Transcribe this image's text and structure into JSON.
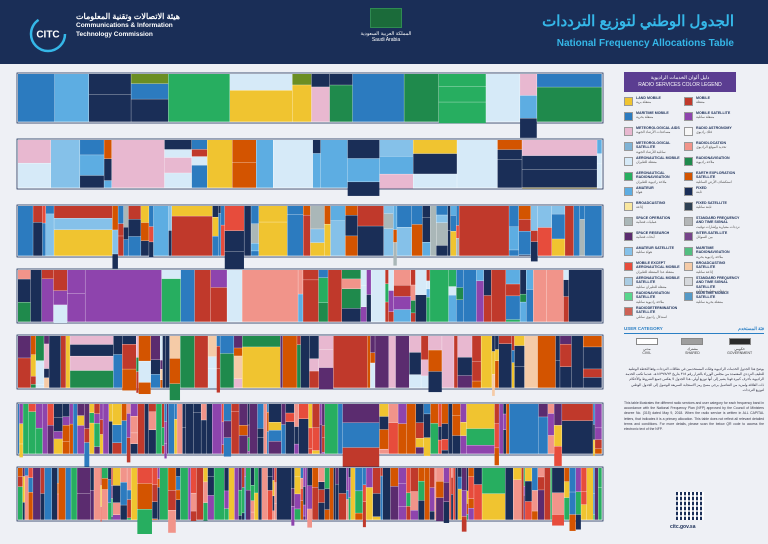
{
  "header": {
    "org_ar": "هيئة الاتصالات وتقنية المعلومات",
    "org_en_1": "Communications & Information",
    "org_en_2": "Technology Commission",
    "logo_word": "CITC",
    "kingdom_ar": "المملكة العربية السعودية",
    "kingdom_en": "Saudi Arabia",
    "title_ar": "الجدول الوطني لتوزيع الترددات",
    "title_en": "National Frequency Allocations Table"
  },
  "legend": {
    "title_ar": "دليل ألوان الخدمات الراديوية",
    "title_en": "RADIO SERVICES COLOR LEGEND",
    "items": [
      {
        "en": "LAND MOBILE",
        "ar": "متنقلة برية",
        "color": "#f0c430"
      },
      {
        "en": "MOBILE",
        "ar": "متنقلة",
        "color": "#c0392b"
      },
      {
        "en": "MARITIME MOBILE",
        "ar": "متنقلة بحرية",
        "color": "#2c7bbf"
      },
      {
        "en": "MOBILE SATELLITE",
        "ar": "متنقلة ساتلية",
        "color": "#8e44ad"
      },
      {
        "en": "METEOROLOGICAL AIDS",
        "ar": "مساعدات الأرصاد الجوية",
        "color": "#e8b8d0"
      },
      {
        "en": "RADIO ASTRONOMY",
        "ar": "فلك راديوي",
        "color": "#f7f7f7"
      },
      {
        "en": "METEOROLOGICAL SATELLITE",
        "ar": "ساتلية للأرصاد الجوية",
        "color": "#7fb3d5"
      },
      {
        "en": "RADIOLOCATION",
        "ar": "تحديد الموقع الراديوي",
        "color": "#f1948a"
      },
      {
        "en": "AERONAUTICAL MOBILE",
        "ar": "متنقلة للطيران",
        "color": "#d6eaf8"
      },
      {
        "en": "RADIONAVIGATION",
        "ar": "ملاحة راديوية",
        "color": "#1f8a4c"
      },
      {
        "en": "AERONAUTICAL RADIONAVIGATION",
        "ar": "ملاحة راديوية للطيران",
        "color": "#27ae60"
      },
      {
        "en": "EARTH EXPLORATION SATELLITE",
        "ar": "استكشاف الأرض الساتلية",
        "color": "#d35400"
      },
      {
        "en": "AMATEUR",
        "ar": "هواة",
        "color": "#5dade2"
      },
      {
        "en": "FIXED",
        "ar": "ثابتة",
        "color": "#1a2e57"
      },
      {
        "en": "BROADCASTING",
        "ar": "إذاعة",
        "color": "#f9e79f"
      },
      {
        "en": "FIXED SATELLITE",
        "ar": "ثابتة ساتلية",
        "color": "#2e4053"
      },
      {
        "en": "SPACE OPERATION",
        "ar": "عمليات فضائية",
        "color": "#aab7b8"
      },
      {
        "en": "STANDARD FREQUENCY AND TIME SIGNAL",
        "ar": "ترددات معيارية وإشارات توقيت",
        "color": "#b3b6b7"
      },
      {
        "en": "SPACE RESEARCH",
        "ar": "أبحاث فضائية",
        "color": "#5b2c6f"
      },
      {
        "en": "INTER-SATELLITE",
        "ar": "بين السواتل",
        "color": "#76448a"
      },
      {
        "en": "AMATEUR SATELLITE",
        "ar": "هواة ساتلية",
        "color": "#85c1e9"
      },
      {
        "en": "MARITIME RADIONAVIGATION",
        "ar": "ملاحة راديوية بحرية",
        "color": "#52be80"
      },
      {
        "en": "MOBILE EXCEPT AERONAUTICAL MOBILE",
        "ar": "متنقلة عدا المتنقلة للطيران",
        "color": "#e74c3c"
      },
      {
        "en": "BROADCASTING SATELLITE",
        "ar": "إذاعة ساتلية",
        "color": "#f5cba7"
      },
      {
        "en": "AERONAUTICAL MOBILE SATELLITE",
        "ar": "متنقلة للطيران ساتلية",
        "color": "#a9cce3"
      },
      {
        "en": "STANDARD FREQUENCY AND TIME SIGNAL SATELLITE",
        "ar": "ترددات معيارية ساتلية",
        "color": "#d5d8dc"
      },
      {
        "en": "RADIONAVIGATION SATELLITE",
        "ar": "ملاحة راديوية ساتلية",
        "color": "#58d68d"
      },
      {
        "en": "MARITIME MOBILE SATELLITE",
        "ar": "متنقلة بحرية ساتلية",
        "color": "#5499c7"
      },
      {
        "en": "RADIODETERMINATION SATELLITE",
        "ar": "استدلال راديوي ساتلي",
        "color": "#cd6155"
      }
    ]
  },
  "user_category": {
    "title_en": "USER CATEGORY",
    "title_ar": "فئة المستخدم",
    "items": [
      {
        "en": "CIVIL",
        "ar": "مدني",
        "color": "#ffffff"
      },
      {
        "en": "SHARED",
        "ar": "مشترك",
        "color": "#9e9e9e"
      },
      {
        "en": "GOVERNMENT",
        "ar": "حكومي",
        "color": "#2b2b2b"
      }
    ]
  },
  "notes": {
    "ar": "يوضح هذا الجدول الخدمات الراديوية وفئات المستخدمين في نطاقات الترددات وفقا للخطة الوطنية للطيف الترددي المعتمدة من مجلس الوزراء بالقرار رقم ٣١٥ بتاريخ ١٤٣٩/٨/٢٣هـ. عندما تكتب الخدمة الراديوية بأحرف كبيرة فهذا يشير إلى أنها توزيع أولي. هذا الجدول لا يعكس جميع الشروط والأحكام ذات العلاقة ولمزيد من التفاصيل يرجى مسح رمز الاستجابة السريعة للوصول إلى الجدول الوطني لتوزيع الترددات.",
    "en": "This table illustrates the different radio services and user category for each frequency band in accordance with the National Frequency Plan (NFP) approved by the Council of Ministers decree No. (315) dated May 9, 2018. When the radio service is written in ALL CAPITAL letters, that indicates it is a primary allocation. This table does not reflect all relevant detailed terms and conditions. For more details, please scan the below QR code to access the electronic text of the NFP."
  },
  "footer": {
    "website": "citc.gov.sa"
  },
  "rows": [
    {
      "palette": [
        "#1a2e57",
        "#2c7bbf",
        "#2c7bbf",
        "#f0c430",
        "#1f8a4c",
        "#27ae60",
        "#6b8e23",
        "#1a2e57",
        "#d6eaf8",
        "#d6eaf8",
        "#5dade2",
        "#e8b8d0"
      ],
      "density": 18
    },
    {
      "palette": [
        "#e8b8d0",
        "#2c7bbf",
        "#1a2e57",
        "#d6eaf8",
        "#d6eaf8",
        "#1a2e57",
        "#c0392b",
        "#d35400",
        "#f0c430",
        "#5dade2",
        "#85c1e9"
      ],
      "density": 26
    },
    {
      "palette": [
        "#1a2e57",
        "#2c7bbf",
        "#5dade2",
        "#c0392b",
        "#d35400",
        "#f0c430",
        "#1a2e57",
        "#aab7b8",
        "#85c1e9",
        "#e74c3c",
        "#2c7bbf"
      ],
      "density": 70
    },
    {
      "palette": [
        "#1a2e57",
        "#c0392b",
        "#2c7bbf",
        "#27ae60",
        "#1f8a4c",
        "#5dade2",
        "#f1948a",
        "#8e44ad",
        "#d6eaf8",
        "#c0392b",
        "#1a2e57"
      ],
      "density": 60
    },
    {
      "palette": [
        "#1a2e57",
        "#d35400",
        "#c0392b",
        "#f0c430",
        "#2c7bbf",
        "#5b2c6f",
        "#f5cba7",
        "#e8b8d0",
        "#d6eaf8",
        "#1f8a4c",
        "#1a2e57"
      ],
      "density": 80
    },
    {
      "palette": [
        "#1a2e57",
        "#c0392b",
        "#d35400",
        "#f0c430",
        "#8e44ad",
        "#2c7bbf",
        "#f1948a",
        "#27ae60",
        "#5b2c6f",
        "#e74c3c",
        "#1a2e57"
      ],
      "density": 120
    },
    {
      "palette": [
        "#d35400",
        "#c0392b",
        "#1a2e57",
        "#f0c430",
        "#2c7bbf",
        "#8e44ad",
        "#f1948a",
        "#5b2c6f",
        "#27ae60",
        "#e74c3c",
        "#1a2e57"
      ],
      "density": 140
    }
  ]
}
